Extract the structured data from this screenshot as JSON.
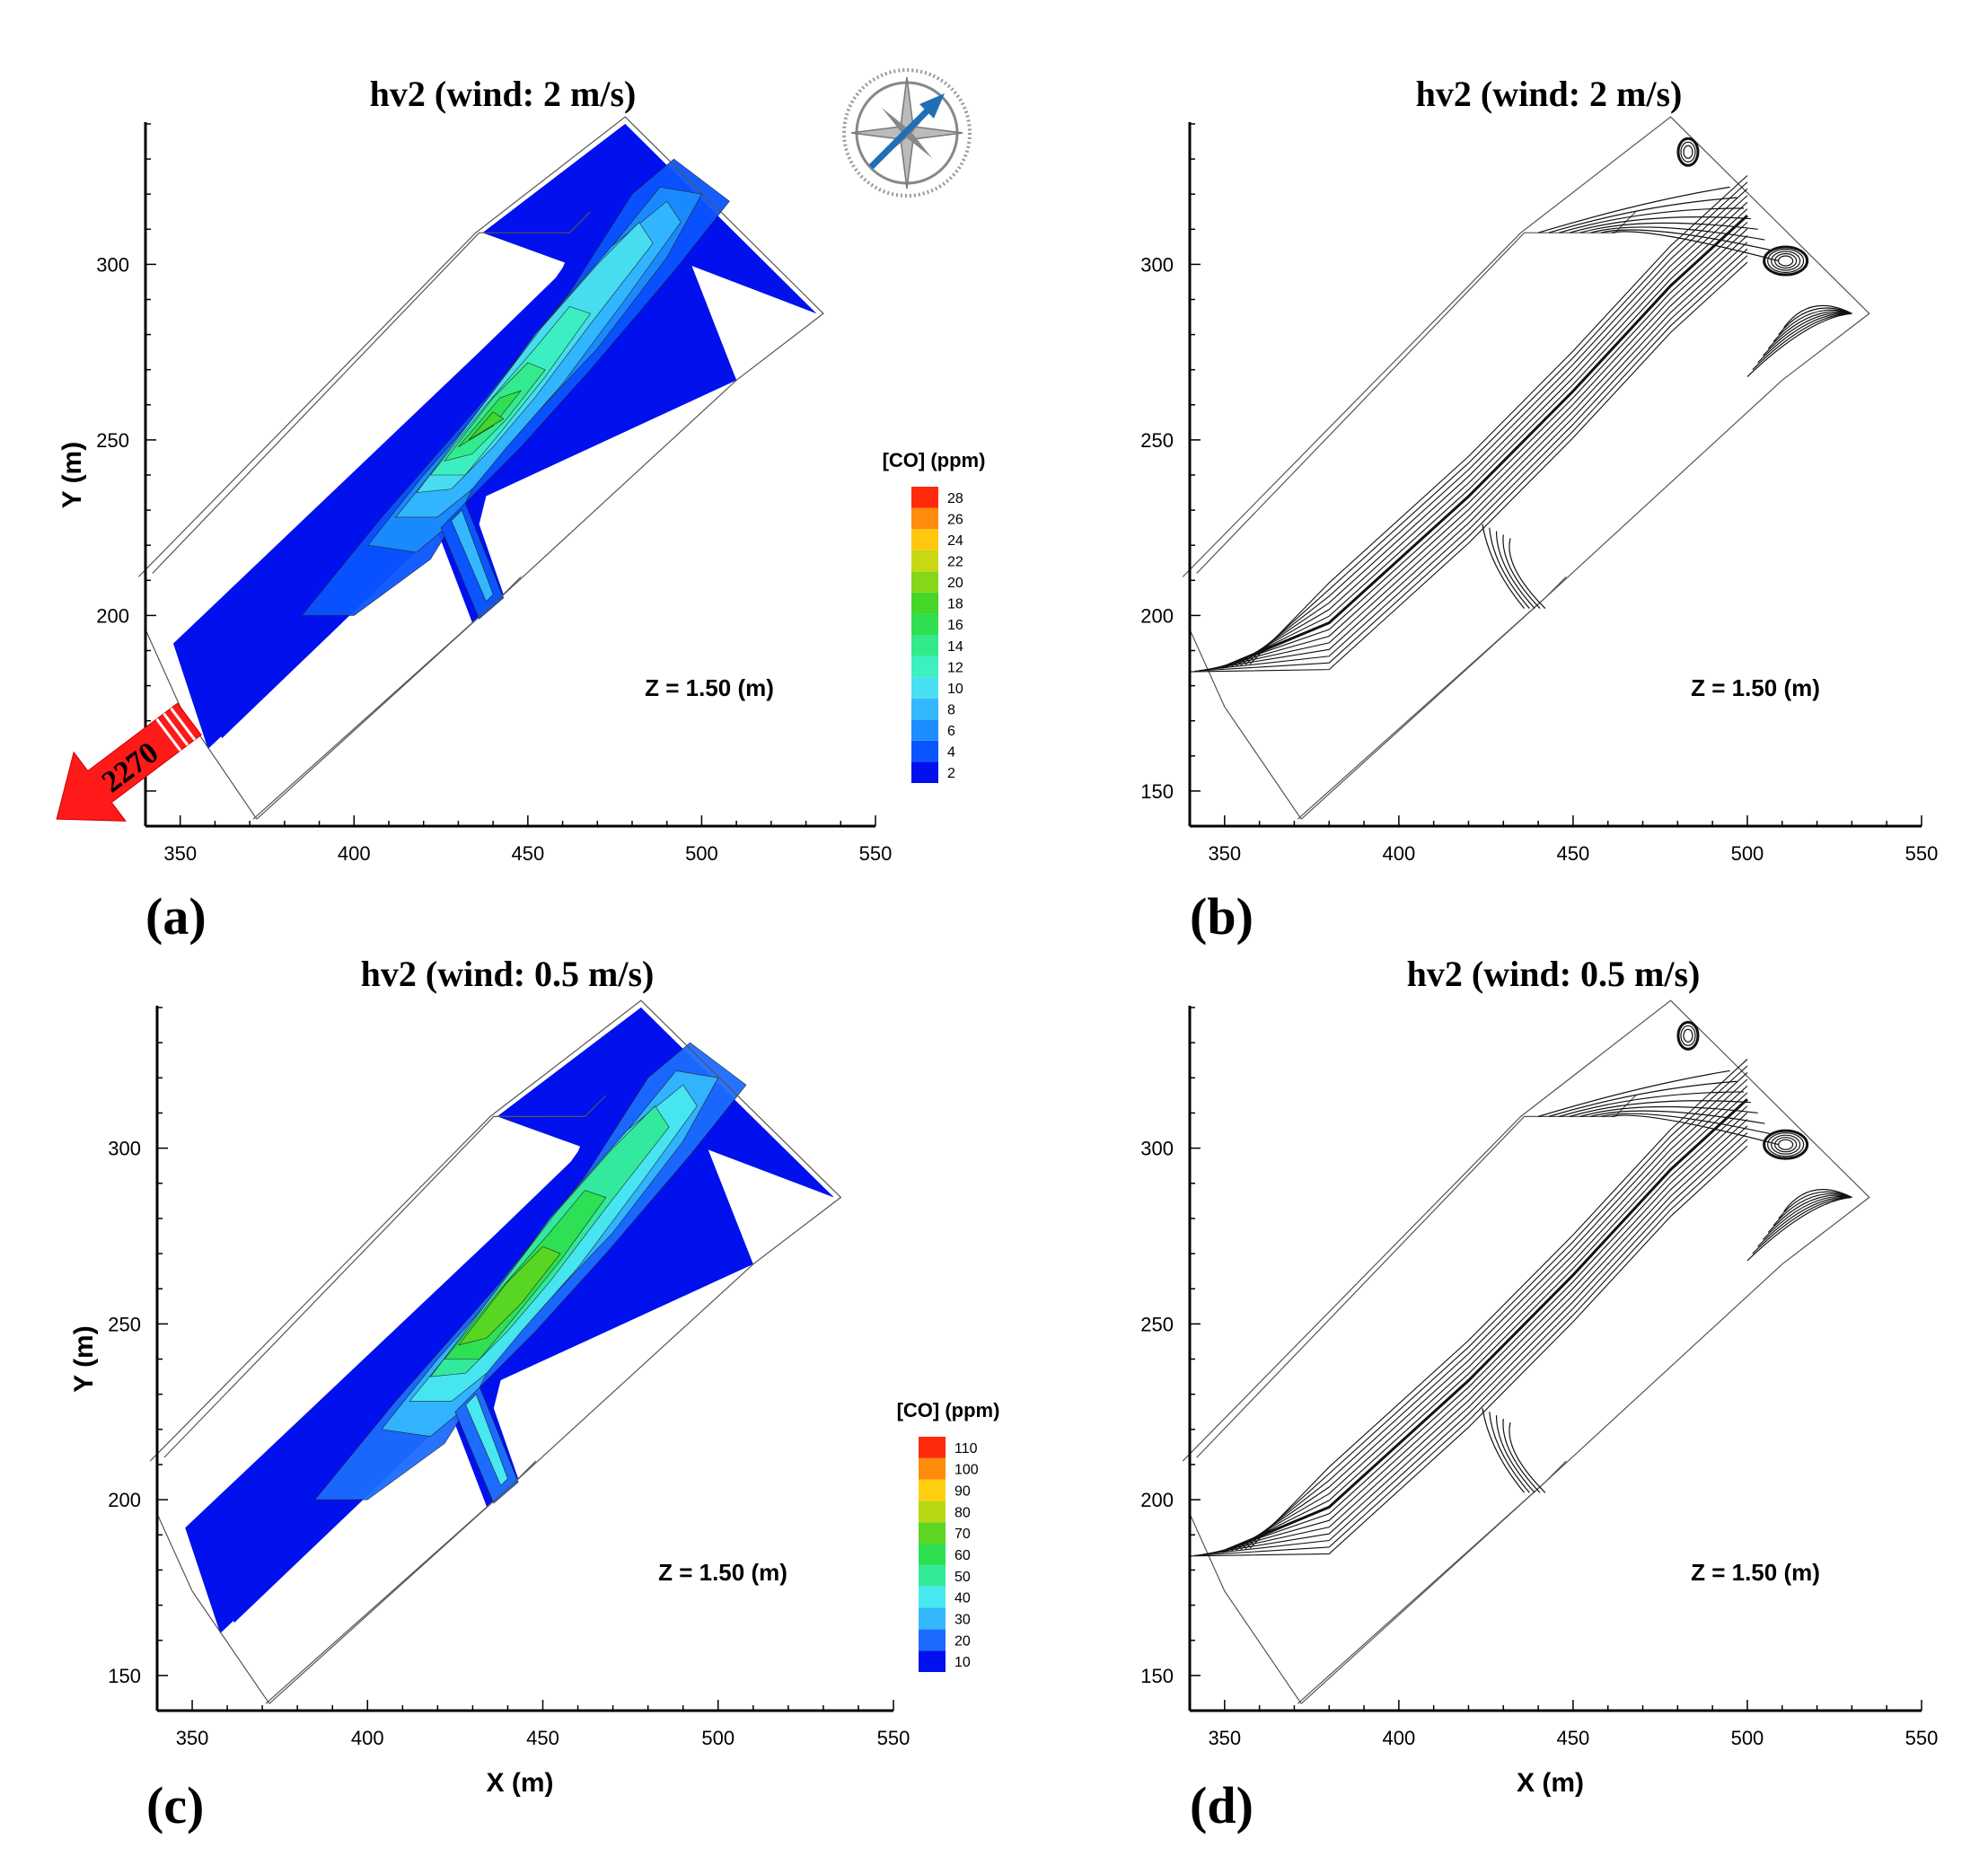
{
  "figure": {
    "panels": [
      {
        "id": "a",
        "label": "(a)",
        "title": "hv2 (wind: 2 m/s)",
        "kind": "contour",
        "annotation": "Z = 1.50 (m)",
        "ylabel": "Y (m)",
        "xlabel": ""
      },
      {
        "id": "b",
        "label": "(b)",
        "title": "hv2 (wind: 2 m/s)",
        "kind": "streamline",
        "annotation": "Z = 1.50 (m)",
        "ylabel": "",
        "xlabel": ""
      },
      {
        "id": "c",
        "label": "(c)",
        "title": "hv2 (wind: 0.5 m/s)",
        "kind": "contour",
        "annotation": "Z = 1.50 (m)",
        "ylabel": "Y (m)",
        "xlabel": "X (m)"
      },
      {
        "id": "d",
        "label": "(d)",
        "title": "hv2 (wind: 0.5 m/s)",
        "kind": "streamline",
        "annotation": "Z = 1.50 (m)",
        "ylabel": "",
        "xlabel": "X (m)"
      }
    ],
    "traffic_arrow": {
      "text": "2270",
      "color": "#ff1a1a"
    },
    "compass": {
      "icon": "compass-rose-icon",
      "arrow_color": "#1f6fb5"
    },
    "colors": {
      "road_low": "#0a14e6",
      "axis": "#000000"
    }
  },
  "chart_data": [
    {
      "type": "heatmap",
      "panel": "a",
      "title": "hv2 (wind: 2 m/s)",
      "xlabel": "",
      "ylabel": "Y (m)",
      "xlim": [
        340,
        550
      ],
      "ylim": [
        140,
        340
      ],
      "xticks": [
        350,
        400,
        450,
        500,
        550
      ],
      "yticks": [
        200,
        250,
        300
      ],
      "legend_title": "[CO] (ppm)",
      "legend_levels": [
        2,
        4,
        6,
        8,
        10,
        12,
        14,
        16,
        18,
        20,
        22,
        24,
        26,
        28
      ],
      "legend_colors": [
        "#0011ee",
        "#0a55ff",
        "#1c8cff",
        "#33b8ff",
        "#48e0f0",
        "#3cf0c0",
        "#33ea8a",
        "#2ee050",
        "#46d628",
        "#86d619",
        "#c8d814",
        "#ffc80f",
        "#ff8c0c",
        "#ff2a0a"
      ],
      "plume_levels_shown": [
        2,
        4,
        6,
        8,
        10,
        12,
        14,
        16
      ],
      "annotation": "Z = 1.50 (m)"
    },
    {
      "type": "streamline",
      "panel": "b",
      "title": "hv2 (wind: 2 m/s)",
      "xlim": [
        340,
        550
      ],
      "ylim": [
        140,
        340
      ],
      "xticks": [
        350,
        400,
        450,
        500,
        550
      ],
      "yticks": [
        150,
        200,
        250,
        300
      ],
      "annotation": "Z = 1.50 (m)"
    },
    {
      "type": "heatmap",
      "panel": "c",
      "title": "hv2 (wind: 0.5 m/s)",
      "xlabel": "X (m)",
      "ylabel": "Y (m)",
      "xlim": [
        340,
        550
      ],
      "ylim": [
        140,
        340
      ],
      "xticks": [
        350,
        400,
        450,
        500,
        550
      ],
      "yticks": [
        150,
        200,
        250,
        300
      ],
      "legend_title": "[CO] (ppm)",
      "legend_levels": [
        10,
        20,
        30,
        40,
        50,
        60,
        70,
        80,
        90,
        100,
        110
      ],
      "legend_colors": [
        "#0011ee",
        "#1c6cff",
        "#33b8ff",
        "#48e8f0",
        "#33ea99",
        "#2ee050",
        "#5cd620",
        "#b8d814",
        "#ffd00f",
        "#ff8c0c",
        "#ff2a0a"
      ],
      "plume_levels_shown": [
        10,
        20,
        30,
        40,
        50,
        60
      ],
      "annotation": "Z = 1.50 (m)"
    },
    {
      "type": "streamline",
      "panel": "d",
      "title": "hv2 (wind: 0.5 m/s)",
      "xlabel": "X (m)",
      "xlim": [
        340,
        550
      ],
      "ylim": [
        140,
        340
      ],
      "xticks": [
        350,
        400,
        450,
        500,
        550
      ],
      "yticks": [
        150,
        200,
        250,
        300
      ],
      "annotation": "Z = 1.50 (m)"
    }
  ]
}
